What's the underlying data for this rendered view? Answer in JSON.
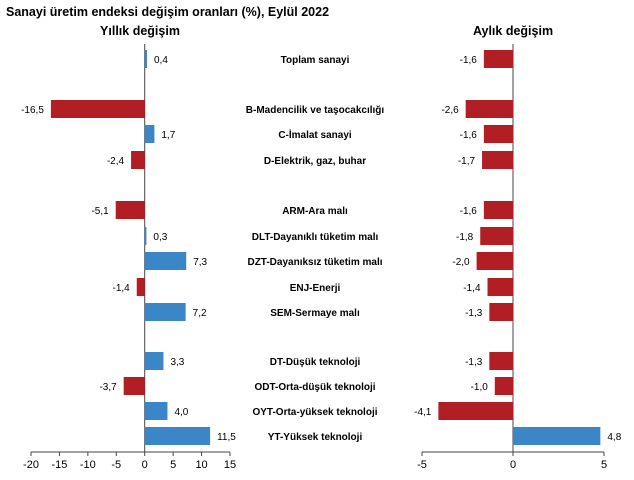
{
  "title": "Sanayi üretim endeksi değişim oranları (%), Eylül 2022",
  "colors": {
    "positive": "#3b86c7",
    "negative": "#b11e24",
    "axis": "#444444"
  },
  "chart_data": [
    {
      "type": "bar",
      "orientation": "horizontal",
      "title": "Yıllık değişim",
      "categories": [
        "Toplam sanayi",
        "B-Madencilik ve taşocakcılığı",
        "C-İmalat sanayi",
        "D-Elektrik, gaz, buhar",
        "ARM-Ara malı",
        "DLT-Dayanıklı tüketim malı",
        "DZT-Dayanıksız tüketim malı",
        "ENJ-Enerji",
        "SEM-Sermaye malı",
        "DT-Düşük teknoloji",
        "ODT-Orta-düşük teknoloji",
        "OYT-Orta-yüksek teknoloji",
        "YT-Yüksek teknoloji"
      ],
      "values": [
        0.4,
        -16.5,
        1.7,
        -2.4,
        -5.1,
        0.3,
        7.3,
        -1.4,
        7.2,
        3.3,
        -3.7,
        4.0,
        11.5
      ],
      "value_labels": [
        "0,4",
        "-16,5",
        "1,7",
        "-2,4",
        "-5,1",
        "0,3",
        "7,3",
        "-1,4",
        "7,2",
        "3,3",
        "-3,7",
        "4,0",
        "11,5"
      ],
      "xlim": [
        -20,
        15
      ],
      "xticks": [
        -20,
        -15,
        -10,
        -5,
        0,
        5,
        10,
        15
      ],
      "xtick_labels": [
        "-20",
        "-15",
        "-10",
        "-5",
        "0",
        "5",
        "10",
        "15"
      ]
    },
    {
      "type": "bar",
      "orientation": "horizontal",
      "title": "Aylık değişim",
      "categories": [
        "Toplam sanayi",
        "B-Madencilik ve taşocakcılığı",
        "C-İmalat sanayi",
        "D-Elektrik, gaz, buhar",
        "ARM-Ara malı",
        "DLT-Dayanıklı tüketim malı",
        "DZT-Dayanıksız tüketim malı",
        "ENJ-Enerji",
        "SEM-Sermaye malı",
        "DT-Düşük teknoloji",
        "ODT-Orta-düşük teknoloji",
        "OYT-Orta-yüksek teknoloji",
        "YT-Yüksek teknoloji"
      ],
      "values": [
        -1.6,
        -2.6,
        -1.6,
        -1.7,
        -1.6,
        -1.8,
        -2.0,
        -1.4,
        -1.3,
        -1.3,
        -1.0,
        -4.1,
        4.8
      ],
      "value_labels": [
        "-1,6",
        "-2,6",
        "-1,6",
        "-1,7",
        "-1,6",
        "-1,8",
        "-2,0",
        "-1,4",
        "-1,3",
        "-1,3",
        "-1,0",
        "-4,1",
        "4,8"
      ],
      "xlim": [
        -5,
        5
      ],
      "xticks": [
        -5,
        0,
        5
      ],
      "xtick_labels": [
        "-5",
        "0",
        "5"
      ]
    }
  ]
}
